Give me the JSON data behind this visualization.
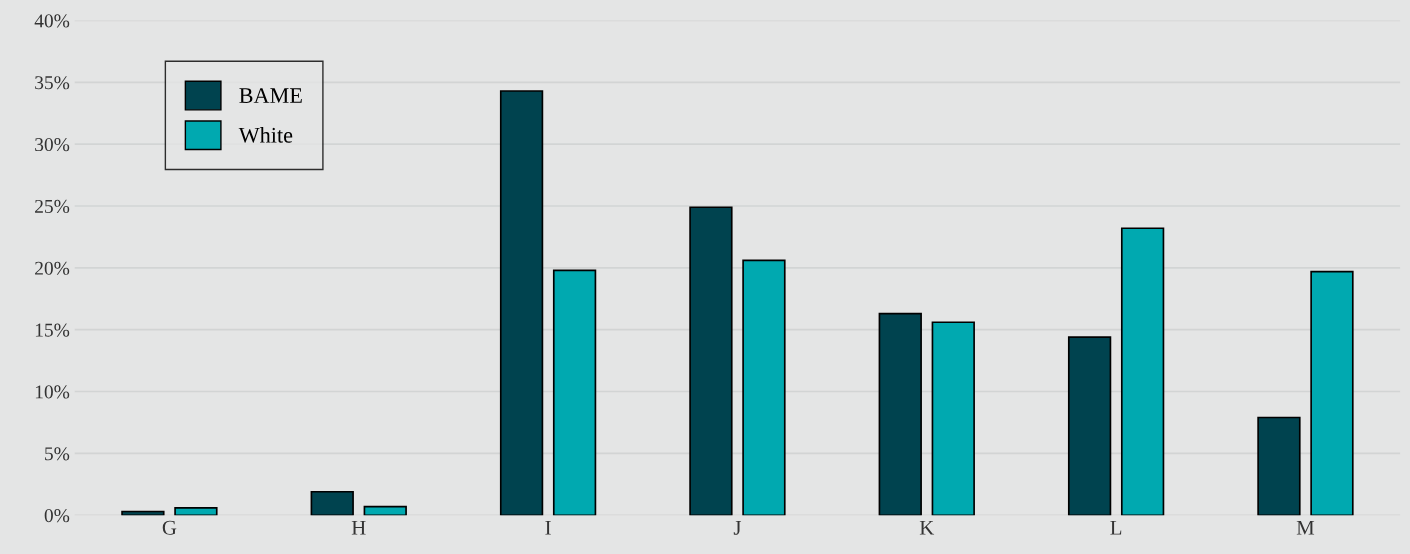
{
  "chart_data": {
    "type": "bar",
    "categories": [
      "G",
      "H",
      "I",
      "J",
      "K",
      "L",
      "M"
    ],
    "series": [
      {
        "name": "BAME",
        "color": "#00434f",
        "values": [
          0.3,
          1.9,
          34.3,
          24.9,
          16.3,
          14.4,
          7.9
        ]
      },
      {
        "name": "White",
        "color": "#00a9b0",
        "values": [
          0.6,
          0.7,
          19.8,
          20.6,
          15.6,
          23.2,
          19.7
        ]
      }
    ],
    "ylim": [
      0,
      40
    ],
    "yticks": [
      {
        "value": 0,
        "label": "0%"
      },
      {
        "value": 5,
        "label": "5%"
      },
      {
        "value": 10,
        "label": "10%"
      },
      {
        "value": 15,
        "label": "15%"
      },
      {
        "value": 20,
        "label": "20%"
      },
      {
        "value": 25,
        "label": "25%"
      },
      {
        "value": 30,
        "label": "30%"
      },
      {
        "value": 35,
        "label": "35%"
      },
      {
        "value": 40,
        "label": "40%"
      }
    ],
    "grid": "y",
    "legend": "top left"
  }
}
